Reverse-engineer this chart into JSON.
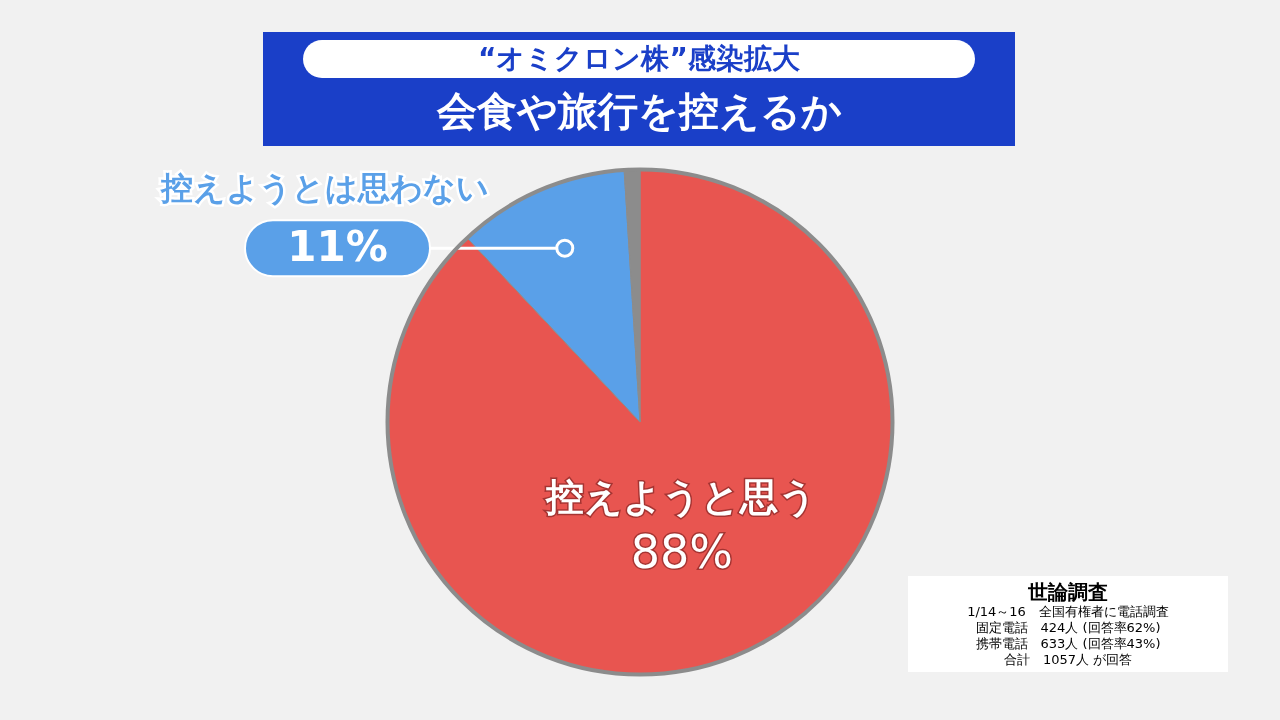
{
  "chart_data": {
    "type": "pie",
    "title": "会食や旅行を控えるか",
    "subtitle": "“オミクロン株”感染拡大",
    "categories": [
      "控えようと思う",
      "控えようとは思わない",
      null
    ],
    "values": [
      88,
      11,
      1
    ],
    "value_labels": [
      "88%",
      "11%",
      null
    ],
    "colors": [
      "#e85550",
      "#5aa0e8",
      "#8c8c8c"
    ],
    "annotations": [
      "世論調査",
      "1/14～16　全国有権者に電話調査",
      "固定電話　424人 (回答率62%)",
      "携帯電話　633人 (回答率43%)",
      "合計　1057人 が回答"
    ]
  }
}
